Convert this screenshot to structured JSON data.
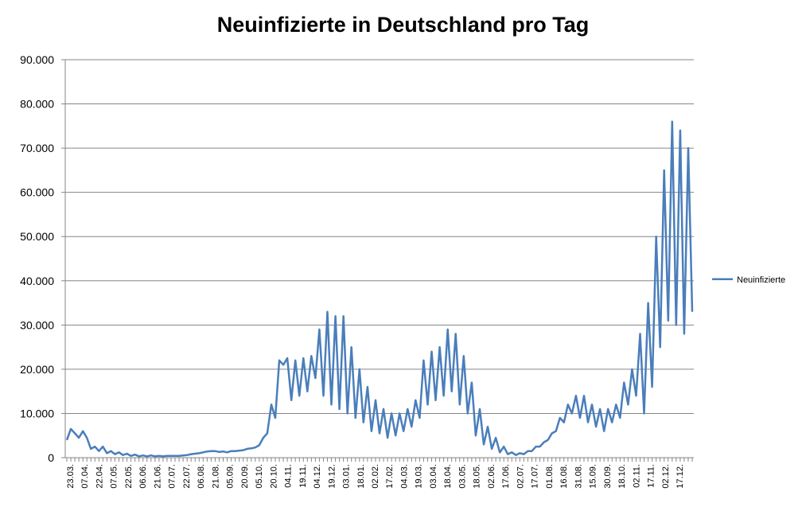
{
  "chart_data": {
    "type": "line",
    "title": "Neuinfizierte in Deutschland pro Tag",
    "xlabel": "",
    "ylabel": "",
    "ylim": [
      0,
      90000
    ],
    "yticks": [
      0,
      10000,
      20000,
      30000,
      40000,
      50000,
      60000,
      70000,
      80000,
      90000
    ],
    "ytick_labels": [
      "0",
      "10.000",
      "20.000",
      "30.000",
      "40.000",
      "50.000",
      "60.000",
      "70.000",
      "80.000",
      "90.000"
    ],
    "x_tick_labels": [
      "23.03.",
      "07.04.",
      "22.04.",
      "07.05.",
      "22.05.",
      "06.06.",
      "21.06.",
      "07.07.",
      "22.07.",
      "06.08.",
      "21.08.",
      "05.09.",
      "20.09.",
      "05.10.",
      "20.10.",
      "04.11.",
      "19.11.",
      "04.12.",
      "19.12.",
      "03.01.",
      "18.01.",
      "02.02.",
      "17.02.",
      "04.03.",
      "19.03.",
      "03.04.",
      "18.04.",
      "03.05.",
      "18.05.",
      "02.06.",
      "17.06.",
      "02.07.",
      "17.07.",
      "01.08.",
      "16.08.",
      "31.08.",
      "15.09.",
      "30.09.",
      "18.10.",
      "02.11.",
      "17.11.",
      "02.12.",
      "17.12."
    ],
    "grid": true,
    "legend": "right",
    "series": [
      {
        "name": "Neuinfizierte",
        "color": "#4a7ebb",
        "values": [
          4000,
          6500,
          5500,
          4500,
          6000,
          4500,
          2000,
          2500,
          1500,
          2500,
          1000,
          1500,
          800,
          1200,
          600,
          900,
          400,
          700,
          300,
          500,
          300,
          500,
          300,
          400,
          300,
          400,
          400,
          400,
          400,
          500,
          600,
          800,
          900,
          1000,
          1200,
          1400,
          1500,
          1500,
          1300,
          1400,
          1200,
          1500,
          1500,
          1600,
          1700,
          2000,
          2100,
          2300,
          2800,
          4500,
          5500,
          12000,
          9000,
          22000,
          21000,
          22500,
          13000,
          22000,
          14000,
          22500,
          15000,
          23000,
          18000,
          29000,
          14000,
          33000,
          12000,
          32000,
          11000,
          32000,
          10000,
          25000,
          9000,
          20000,
          8000,
          16000,
          6000,
          13000,
          5500,
          11000,
          4500,
          10000,
          5000,
          10000,
          6000,
          11000,
          7000,
          13000,
          9000,
          22000,
          12000,
          24000,
          13000,
          25000,
          14000,
          29000,
          15000,
          28000,
          12000,
          23000,
          10000,
          17000,
          5000,
          11000,
          3000,
          7000,
          2000,
          4500,
          1200,
          2500,
          800,
          1200,
          600,
          1000,
          800,
          1500,
          1500,
          2500,
          2500,
          3500,
          4000,
          5500,
          6000,
          9000,
          8000,
          12000,
          10000,
          14000,
          9000,
          14000,
          8000,
          12000,
          7000,
          11000,
          6000,
          11000,
          8000,
          12000,
          9000,
          17000,
          12000,
          20000,
          14000,
          28000,
          10000,
          35000,
          16000,
          50000,
          25000,
          65000,
          31000,
          76000,
          30000,
          74000,
          28000,
          70000,
          33000
        ]
      }
    ]
  }
}
